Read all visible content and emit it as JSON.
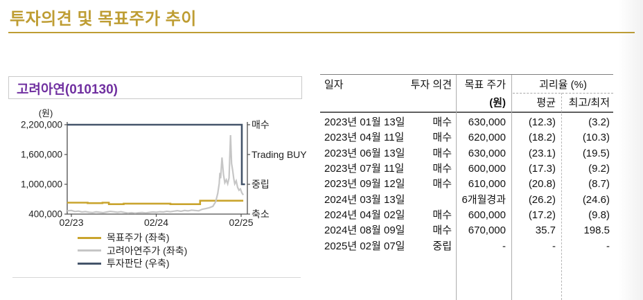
{
  "page": {
    "title": "투자의견 및 목표주가 추이"
  },
  "colors": {
    "accent_gold": "#BE9D33",
    "stock_purple": "#7030A0",
    "target_line": "#C9A42D",
    "price_line": "#C6C6C6",
    "rating_line": "#44546A"
  },
  "panel": {
    "stock_header": "고려아연(010130)",
    "legend": [
      {
        "label": "목표주가 (좌축)",
        "color": "#C9A42D"
      },
      {
        "label": "고려아연주가 (좌축)",
        "color": "#C6C6C6"
      },
      {
        "label": "투자판단 (우축)",
        "color": "#44546A"
      }
    ]
  },
  "chart_data": {
    "type": "line",
    "title": "고려아연(010130)",
    "unit_label": "(원)",
    "x_ticks": [
      "02/23",
      "02/24",
      "02/25"
    ],
    "x_tick_months": [
      0,
      12,
      24
    ],
    "y_left": {
      "min": 400000,
      "max": 2200000,
      "ticks": [
        2200000,
        1600000,
        1000000,
        400000
      ]
    },
    "y_right_categories": [
      "매수",
      "Trading BUY",
      "중립",
      "축소"
    ],
    "grid": false,
    "legend_position": "bottom",
    "series": [
      {
        "id": "target-price",
        "name": "목표주가 (좌축)",
        "axis": "left",
        "style": "step",
        "color": "#C9A42D",
        "width": 2.6,
        "points": [
          [
            -0.6,
            630000
          ],
          [
            2.3,
            620000
          ],
          [
            4.4,
            630000
          ],
          [
            5.3,
            600000
          ],
          [
            7.4,
            610000
          ],
          [
            14.0,
            600000
          ],
          [
            18.2,
            670000
          ],
          [
            24.3,
            670000
          ]
        ]
      },
      {
        "id": "stock-price",
        "name": "고려아연주가 (좌축)",
        "axis": "left",
        "style": "line",
        "color": "#C6C6C6",
        "width": 2.2,
        "points": [
          [
            -0.6,
            465000
          ],
          [
            0,
            472000
          ],
          [
            0.5,
            452000
          ],
          [
            1,
            460000
          ],
          [
            1.5,
            442000
          ],
          [
            2,
            450000
          ],
          [
            2.5,
            438000
          ],
          [
            3,
            430000
          ],
          [
            3.5,
            444000
          ],
          [
            4,
            436000
          ],
          [
            4.5,
            428000
          ],
          [
            5,
            442000
          ],
          [
            5.5,
            455000
          ],
          [
            6,
            446000
          ],
          [
            6.5,
            436000
          ],
          [
            7,
            448000
          ],
          [
            7.5,
            432000
          ],
          [
            8,
            420000
          ],
          [
            8.5,
            428000
          ],
          [
            9,
            418000
          ],
          [
            9.5,
            426000
          ],
          [
            10,
            432000
          ],
          [
            10.5,
            424000
          ],
          [
            11,
            434000
          ],
          [
            11.5,
            442000
          ],
          [
            12,
            436000
          ],
          [
            12.5,
            448000
          ],
          [
            13,
            442000
          ],
          [
            13.5,
            456000
          ],
          [
            14,
            448000
          ],
          [
            14.5,
            458000
          ],
          [
            15,
            468000
          ],
          [
            15.5,
            456000
          ],
          [
            16,
            472000
          ],
          [
            16.5,
            464000
          ],
          [
            17,
            480000
          ],
          [
            17.5,
            472000
          ],
          [
            18,
            466000
          ],
          [
            18.5,
            498000
          ],
          [
            19,
            510000
          ],
          [
            19.5,
            528000
          ],
          [
            20,
            556000
          ],
          [
            20.4,
            650000
          ],
          [
            20.7,
            820000
          ],
          [
            20.9,
            1020000
          ],
          [
            21.0,
            1230000
          ],
          [
            21.1,
            1120000
          ],
          [
            21.3,
            1540000
          ],
          [
            21.5,
            1200000
          ],
          [
            21.7,
            1030000
          ],
          [
            21.9,
            1090000
          ],
          [
            22.1,
            1010000
          ],
          [
            22.3,
            1130000
          ],
          [
            22.5,
            1990000
          ],
          [
            22.65,
            1420000
          ],
          [
            22.8,
            1280000
          ],
          [
            22.95,
            1120000
          ],
          [
            23.1,
            1010000
          ],
          [
            23.3,
            1070000
          ],
          [
            23.5,
            940000
          ],
          [
            23.7,
            880000
          ],
          [
            23.9,
            905000
          ],
          [
            24.1,
            830000
          ],
          [
            24.3,
            785000
          ]
        ]
      },
      {
        "id": "rating",
        "name": "투자판단 (우축)",
        "axis": "right",
        "style": "line",
        "color": "#44546A",
        "width": 2.6,
        "points": [
          [
            -0.6,
            "매수"
          ],
          [
            24.1,
            "매수"
          ],
          [
            24.1,
            "중립"
          ],
          [
            24.55,
            "중립"
          ]
        ]
      }
    ]
  },
  "table": {
    "headers": {
      "date": "일자",
      "opinion": "투자 의견",
      "target_price": "목표 주가",
      "target_unit": "(원)",
      "gap_group": "괴리율 (%)",
      "gap_avg": "평균",
      "gap_hilo": "최고/최저"
    },
    "rows": [
      [
        "2023년 01월 13일",
        "매수",
        "630,000",
        "(12.3)",
        "(3.2)"
      ],
      [
        "2023년 04월 11일",
        "매수",
        "620,000",
        "(18.2)",
        "(10.3)"
      ],
      [
        "2023년 06월 13일",
        "매수",
        "630,000",
        "(23.1)",
        "(19.5)"
      ],
      [
        "2023년 07월 11일",
        "매수",
        "600,000",
        "(17.3)",
        "(9.2)"
      ],
      [
        "2023년 09월 12일",
        "매수",
        "610,000",
        "(20.8)",
        "(8.7)"
      ],
      [
        "2024년 03월 13일",
        "",
        "6개월경과",
        "(26.2)",
        "(24.6)"
      ],
      [
        "2024년 04월 02일",
        "매수",
        "600,000",
        "(17.2)",
        "(9.8)"
      ],
      [
        "2024년 08월 09일",
        "매수",
        "670,000",
        "35.7",
        "198.5"
      ],
      [
        "2025년 02월 07일",
        "중립",
        "-",
        "-",
        "-"
      ]
    ]
  }
}
